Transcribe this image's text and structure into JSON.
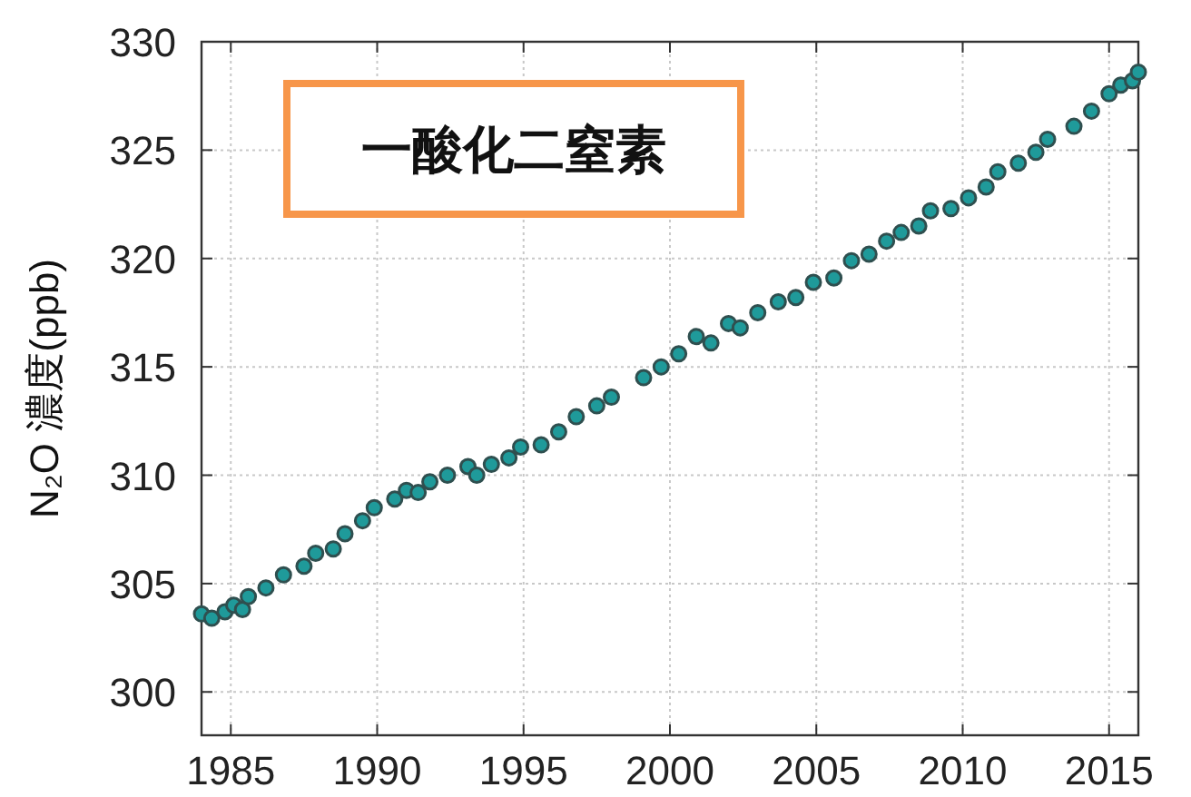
{
  "chart_data": {
    "type": "scatter",
    "title": "一酸化二窒素",
    "ylabel": "N₂O 濃度(ppb)",
    "x": [
      1984.0,
      1984.35,
      1984.8,
      1985.1,
      1985.4,
      1985.6,
      1986.2,
      1986.8,
      1987.5,
      1987.9,
      1988.5,
      1988.9,
      1989.5,
      1989.9,
      1990.6,
      1991.0,
      1991.4,
      1991.8,
      1992.4,
      1993.1,
      1993.4,
      1993.9,
      1994.5,
      1994.9,
      1995.6,
      1996.2,
      1996.8,
      1997.5,
      1998.0,
      1999.1,
      1999.7,
      2000.3,
      2000.9,
      2001.4,
      2002.0,
      2002.4,
      2003.0,
      2003.7,
      2004.3,
      2004.9,
      2005.6,
      2006.2,
      2006.8,
      2007.4,
      2007.9,
      2008.5,
      2008.9,
      2009.6,
      2010.2,
      2010.8,
      2011.2,
      2011.9,
      2012.5,
      2012.9,
      2013.8,
      2014.4,
      2015.0,
      2015.4,
      2015.8,
      2016.0
    ],
    "series": [
      {
        "color": "#1f9a9a",
        "values": [
          303.6,
          303.4,
          303.7,
          304.0,
          303.8,
          304.4,
          304.8,
          305.4,
          305.8,
          306.4,
          306.6,
          307.3,
          307.9,
          308.5,
          308.9,
          309.3,
          309.2,
          309.7,
          310.0,
          310.4,
          310.0,
          310.5,
          310.8,
          311.3,
          311.4,
          312.0,
          312.7,
          313.2,
          313.6,
          314.5,
          315.0,
          315.6,
          316.4,
          316.1,
          317.0,
          316.8,
          317.5,
          318.0,
          318.2,
          318.9,
          319.1,
          319.9,
          320.2,
          320.8,
          321.2,
          321.5,
          322.2,
          322.3,
          322.8,
          323.3,
          324.0,
          324.4,
          324.9,
          325.5,
          326.1,
          326.8,
          327.6,
          328.0,
          328.2,
          328.6
        ]
      }
    ],
    "xlim": [
      1984,
      2016
    ],
    "ylim": [
      298,
      330
    ],
    "xticks": [
      1985,
      1990,
      1995,
      2000,
      2005,
      2010,
      2015
    ],
    "yticks": [
      300,
      305,
      310,
      315,
      320,
      325,
      330
    ],
    "grid": true,
    "marker": "circle"
  }
}
